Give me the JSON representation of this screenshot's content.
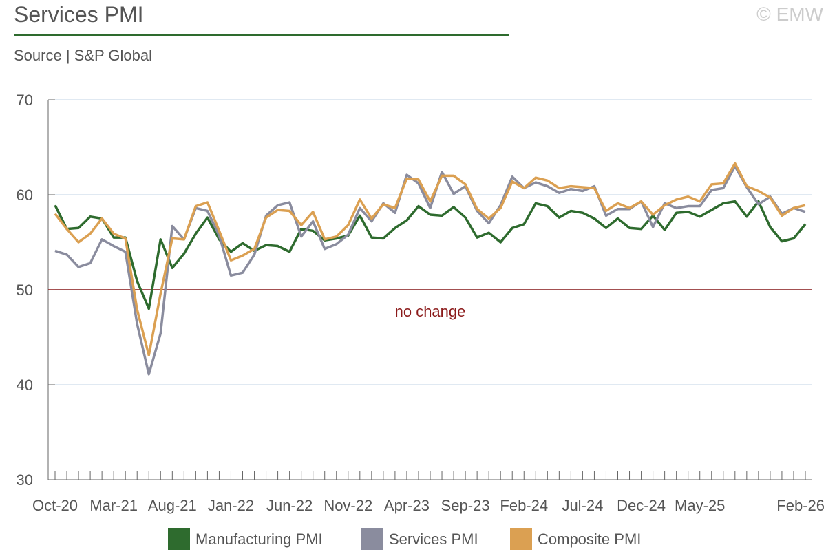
{
  "chart_data": {
    "type": "line",
    "title": "Services PMI",
    "subtitle": "Source | S&P Global",
    "credit": "© EMW",
    "categories": [
      "Oct-20",
      null,
      null,
      null,
      null,
      "Mar-21",
      null,
      null,
      null,
      null,
      "Aug-21",
      null,
      null,
      null,
      null,
      "Jan-22",
      null,
      null,
      null,
      null,
      "Jun-22",
      null,
      null,
      null,
      null,
      "Nov-22",
      null,
      null,
      null,
      null,
      "Apr-23",
      null,
      null,
      null,
      null,
      "Sep-23",
      null,
      null,
      null,
      null,
      "Feb-24",
      null,
      null,
      null,
      null,
      "Jul-24",
      null,
      null,
      null,
      null,
      "Dec-24",
      null,
      null,
      null,
      null,
      "May-25",
      null,
      null,
      null,
      null,
      null,
      null,
      null,
      null,
      "Feb-26"
    ],
    "series": [
      {
        "name": "Manufacturing PMI",
        "color": "#2e6b2e",
        "values": [
          58.9,
          56.4,
          56.5,
          57.7,
          57.5,
          55.5,
          55.5,
          50.9,
          48.0,
          55.3,
          52.3,
          53.8,
          55.9,
          57.6,
          55.3,
          54.0,
          54.9,
          54.1,
          54.7,
          54.6,
          54.0,
          56.4,
          56.2,
          55.2,
          55.4,
          55.7,
          57.8,
          55.5,
          55.4,
          56.5,
          57.3,
          58.8,
          57.9,
          57.8,
          58.7,
          57.6,
          55.5,
          56.0,
          55.0,
          56.5,
          56.9,
          59.1,
          58.8,
          57.6,
          58.3,
          58.1,
          57.5,
          56.5,
          57.5,
          56.5,
          56.4,
          57.8,
          56.3,
          58.1,
          58.2,
          57.7,
          58.4,
          59.1,
          59.3,
          57.7,
          59.3,
          56.6,
          55.1,
          55.4,
          56.9
        ]
      },
      {
        "name": "Services PMI",
        "color": "#8a8c9e",
        "values": [
          54.1,
          53.7,
          52.4,
          52.8,
          55.3,
          54.6,
          54.0,
          46.4,
          41.1,
          45.4,
          56.7,
          55.3,
          58.6,
          58.3,
          55.7,
          51.5,
          51.8,
          53.7,
          57.8,
          58.9,
          59.2,
          55.6,
          57.2,
          54.3,
          54.8,
          55.8,
          58.6,
          57.2,
          59.1,
          58.1,
          62.1,
          61.2,
          58.6,
          62.4,
          60.1,
          60.9,
          58.3,
          57.0,
          58.9,
          61.9,
          60.7,
          61.3,
          60.9,
          60.2,
          60.6,
          60.4,
          60.9,
          57.8,
          58.5,
          58.5,
          59.3,
          56.6,
          59.1,
          58.6,
          58.8,
          58.8,
          60.5,
          60.7,
          63.0,
          60.8,
          59.0,
          59.8,
          58.0,
          58.6,
          58.2
        ]
      },
      {
        "name": "Composite PMI",
        "color": "#dba052",
        "values": [
          58.0,
          56.4,
          55.0,
          55.9,
          57.5,
          55.9,
          55.4,
          47.9,
          43.1,
          49.6,
          55.4,
          55.3,
          58.8,
          59.2,
          56.2,
          53.1,
          53.6,
          54.3,
          57.6,
          58.4,
          58.3,
          56.8,
          58.2,
          55.3,
          55.6,
          56.8,
          59.5,
          57.5,
          59.0,
          58.6,
          61.7,
          61.6,
          59.3,
          62.0,
          62.0,
          61.1,
          58.5,
          57.5,
          58.6,
          61.4,
          60.7,
          61.8,
          61.5,
          60.7,
          60.9,
          60.8,
          60.7,
          58.3,
          59.1,
          58.6,
          59.3,
          57.9,
          58.9,
          59.5,
          59.8,
          59.3,
          61.1,
          61.2,
          63.3,
          60.9,
          60.4,
          59.7,
          57.8,
          58.6,
          58.9
        ]
      }
    ],
    "reference_line": {
      "value": 50,
      "label": "no change",
      "color": "#8b1a1a"
    },
    "ylim": [
      30,
      70
    ],
    "yticks": [
      30,
      40,
      50,
      60,
      70
    ],
    "grid": true
  }
}
